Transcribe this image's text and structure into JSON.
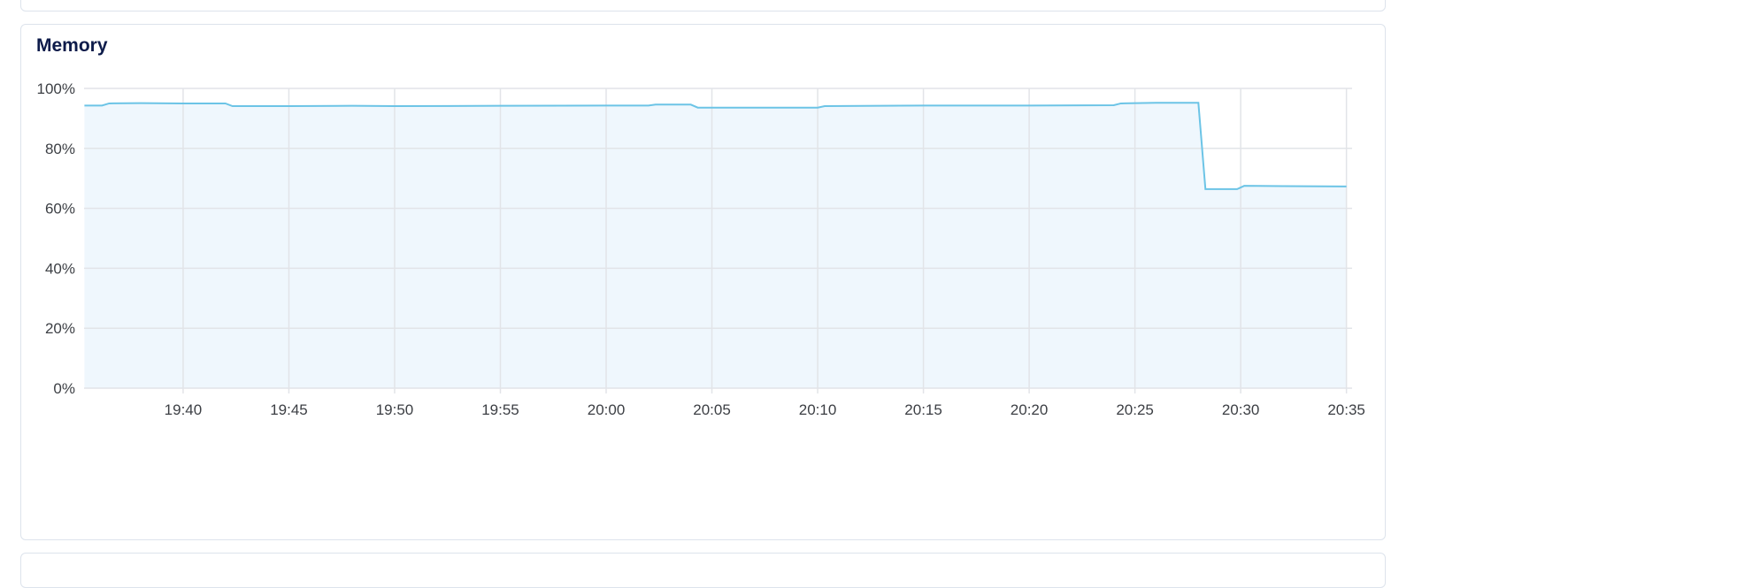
{
  "panel": {
    "title": "Memory"
  },
  "colors": {
    "line": "#6cc4e6",
    "fill": "#eff7fd",
    "grid": "#e2e4e8",
    "title": "#0d1b4a"
  },
  "chart_data": {
    "type": "area",
    "title": "Memory",
    "xlabel": "",
    "ylabel": "",
    "xlim": [
      "19:35:19",
      "20:35:16"
    ],
    "ylim": [
      0,
      100
    ],
    "grid": true,
    "y_ticks": [
      "0%",
      "20%",
      "40%",
      "60%",
      "80%",
      "100%"
    ],
    "x_ticks": [
      "19:40",
      "19:45",
      "19:50",
      "19:55",
      "20:00",
      "20:05",
      "20:10",
      "20:15",
      "20:20",
      "20:25",
      "20:30",
      "20:35"
    ],
    "series": [
      {
        "x": [
          "19:35:20",
          "19:36:10",
          "19:36:30",
          "19:38:00",
          "19:40:00",
          "19:42:00",
          "19:42:20",
          "19:45:00",
          "19:48:00",
          "19:50:00",
          "19:55:00",
          "20:00:00",
          "20:02:00",
          "20:02:20",
          "20:04:00",
          "20:04:20",
          "20:10:00",
          "20:10:20",
          "20:15:00",
          "20:20:00",
          "20:24:00",
          "20:24:20",
          "20:26:00",
          "20:28:00",
          "20:28:20",
          "20:29:50",
          "20:30:10",
          "20:32:00",
          "20:35:00"
        ],
        "y": [
          94.3,
          94.3,
          95.0,
          95.1,
          95.0,
          95.0,
          94.1,
          94.1,
          94.2,
          94.1,
          94.2,
          94.3,
          94.3,
          94.6,
          94.6,
          93.6,
          93.6,
          94.1,
          94.3,
          94.3,
          94.4,
          95.0,
          95.2,
          95.2,
          66.4,
          66.4,
          67.5,
          67.4,
          67.3
        ]
      }
    ]
  }
}
